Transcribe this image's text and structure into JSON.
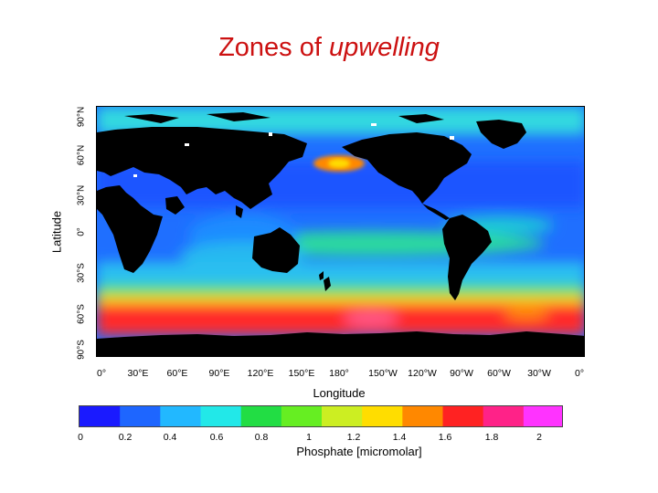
{
  "title": {
    "main": "Zones of ",
    "emphasis": "upwelling"
  },
  "axes": {
    "y_label": "Latitude",
    "y_ticks": [
      "90°N",
      "60°N",
      "30°N",
      "0°",
      "30°S",
      "60°S",
      "90°S"
    ],
    "x_label": "Longitude",
    "x_ticks": [
      "0°",
      "30°E",
      "60°E",
      "90°E",
      "120°E",
      "150°E",
      "180°",
      "150°W",
      "120°W",
      "90°W",
      "60°W",
      "30°W",
      "0°"
    ]
  },
  "colorbar": {
    "label": "Phosphate [micromolar]",
    "ticks": [
      "0",
      "0.2",
      "0.4",
      "0.6",
      "0.8",
      "1",
      "1.2",
      "1.4",
      "1.6",
      "1.8",
      "2"
    ],
    "range": [
      0,
      2.2
    ],
    "colors": [
      "#1a1aff",
      "#1e66ff",
      "#22b8ff",
      "#22e8e8",
      "#22dd44",
      "#66ee22",
      "#ccee22",
      "#ffdd00",
      "#ff8800",
      "#ff2222",
      "#ff2288",
      "#ff33ff"
    ]
  },
  "map": {
    "land_color": "#000000",
    "projection": "equirectangular"
  }
}
